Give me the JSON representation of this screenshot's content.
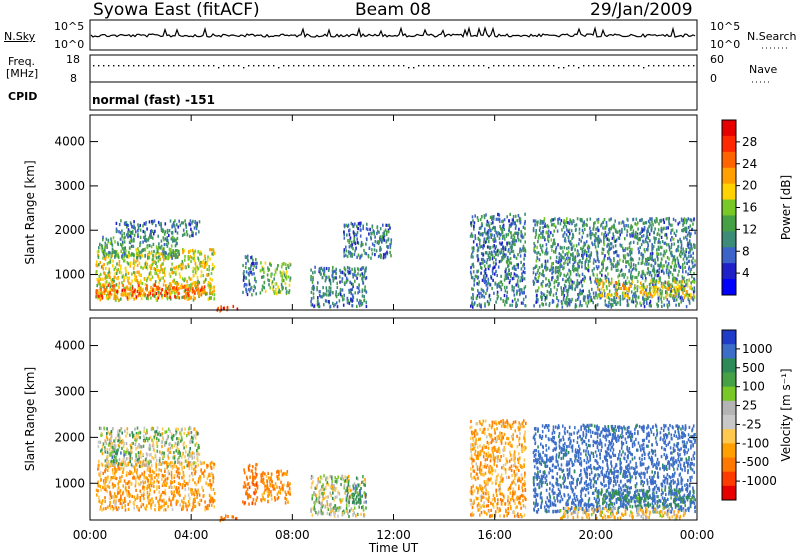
{
  "header": {
    "station": "Syowa East (fitACF)",
    "beam": "Beam 08",
    "date": "29/Jan/2009"
  },
  "status": {
    "nsky_label": "N.Sky",
    "nsearch_label": "N.Search",
    "freq_label_1": "Freq.",
    "freq_label_2": "[MHz]",
    "nave_label": "Nave",
    "cpid_label": "CPID",
    "cpid_value": "normal (fast) -151",
    "noise_ticks_left": [
      "10^5",
      "10^0"
    ],
    "noise_ticks_right": [
      "10^5",
      "10^0"
    ],
    "freq_ticks": [
      "18",
      "8"
    ],
    "nave_ticks": [
      "60",
      "0"
    ]
  },
  "colors": {
    "background": "#ffffff",
    "axis": "#000000",
    "power_scale": [
      "#0000ff",
      "#2020c8",
      "#3c64c8",
      "#3c8c78",
      "#46a046",
      "#78c828",
      "#ffd200",
      "#ffa000",
      "#ff6400",
      "#ff2800",
      "#e60000"
    ],
    "velocity_scale": [
      "#e60000",
      "#ff3c00",
      "#ff7800",
      "#ffa000",
      "#ffc850",
      "#c8c8c8",
      "#b4b4b4",
      "#78c828",
      "#46a046",
      "#2e8b57",
      "#3c6ec8",
      "#1e3cc8"
    ]
  },
  "chart_data": [
    {
      "type": "heatmap",
      "name": "power",
      "ylabel": "Slant Range [km]",
      "xlabel": "",
      "x_ticks": [
        "00:00",
        "04:00",
        "08:00",
        "12:00",
        "16:00",
        "20:00",
        "00:00"
      ],
      "xlim": [
        0,
        24
      ],
      "ylim": [
        200,
        4600
      ],
      "y_ticks": [
        1000,
        2000,
        3000,
        4000
      ],
      "colorbar": {
        "label": "Power [dB]",
        "ticks": [
          "28",
          "24",
          "20",
          "16",
          "12",
          "8",
          "4"
        ],
        "range": [
          0,
          30
        ]
      },
      "blobs": [
        {
          "t0": 0.2,
          "t1": 4.9,
          "r0": 450,
          "r1": 1600,
          "v": 17
        },
        {
          "t0": 0.2,
          "t1": 4.5,
          "r0": 500,
          "r1": 800,
          "v": 24
        },
        {
          "t0": 0.3,
          "t1": 3.5,
          "r0": 1400,
          "r1": 1900,
          "v": 11
        },
        {
          "t0": 1.0,
          "t1": 4.3,
          "r0": 1900,
          "r1": 2250,
          "v": 8
        },
        {
          "t0": 5.0,
          "t1": 5.8,
          "r0": 200,
          "r1": 320,
          "v": 26
        },
        {
          "t0": 6.0,
          "t1": 6.6,
          "r0": 550,
          "r1": 1450,
          "v": 8
        },
        {
          "t0": 6.7,
          "t1": 7.9,
          "r0": 600,
          "r1": 1300,
          "v": 14
        },
        {
          "t0": 8.7,
          "t1": 10.9,
          "r0": 300,
          "r1": 1200,
          "v": 8
        },
        {
          "t0": 10.0,
          "t1": 11.9,
          "r0": 1400,
          "r1": 2200,
          "v": 8
        },
        {
          "t0": 15.0,
          "t1": 17.2,
          "r0": 300,
          "r1": 2400,
          "v": 8
        },
        {
          "t0": 17.5,
          "t1": 23.9,
          "r0": 300,
          "r1": 2300,
          "v": 9
        },
        {
          "t0": 20.0,
          "t1": 23.9,
          "r0": 500,
          "r1": 900,
          "v": 18
        }
      ]
    },
    {
      "type": "heatmap",
      "name": "velocity",
      "ylabel": "Slant Range [km]",
      "xlabel": "Time UT",
      "x_ticks": [
        "00:00",
        "04:00",
        "08:00",
        "12:00",
        "16:00",
        "20:00",
        "00:00"
      ],
      "xlim": [
        0,
        24
      ],
      "ylim": [
        200,
        4600
      ],
      "y_ticks": [
        1000,
        2000,
        3000,
        4000
      ],
      "colorbar": {
        "label": "Velocity [m s⁻¹]",
        "ticks": [
          "1000",
          "500",
          "100",
          "25",
          "-25",
          "-100",
          "-500",
          "-1000"
        ]
      },
      "blobs": [
        {
          "t0": 0.2,
          "t1": 4.9,
          "r0": 450,
          "r1": 1500,
          "v": -150
        },
        {
          "t0": 0.3,
          "t1": 4.3,
          "r0": 1400,
          "r1": 2250,
          "v": 0
        },
        {
          "t0": 0.8,
          "t1": 1.6,
          "r0": 1500,
          "r1": 1700,
          "v": 120
        },
        {
          "t0": 5.0,
          "t1": 5.8,
          "r0": 200,
          "r1": 320,
          "v": -400
        },
        {
          "t0": 6.0,
          "t1": 6.6,
          "r0": 550,
          "r1": 1450,
          "v": -400
        },
        {
          "t0": 6.7,
          "t1": 7.9,
          "r0": 600,
          "r1": 1300,
          "v": -200
        },
        {
          "t0": 8.7,
          "t1": 10.9,
          "r0": 300,
          "r1": 1200,
          "v": 0
        },
        {
          "t0": 10.0,
          "t1": 10.9,
          "r0": 600,
          "r1": 1000,
          "v": 120
        },
        {
          "t0": 15.0,
          "t1": 17.2,
          "r0": 300,
          "r1": 2400,
          "v": -150
        },
        {
          "t0": 17.5,
          "t1": 23.9,
          "r0": 400,
          "r1": 2300,
          "v": 300
        },
        {
          "t0": 20.0,
          "t1": 23.9,
          "r0": 500,
          "r1": 900,
          "v": 160
        },
        {
          "t0": 18.5,
          "t1": 23.5,
          "r0": 250,
          "r1": 500,
          "v": -80
        }
      ]
    }
  ]
}
